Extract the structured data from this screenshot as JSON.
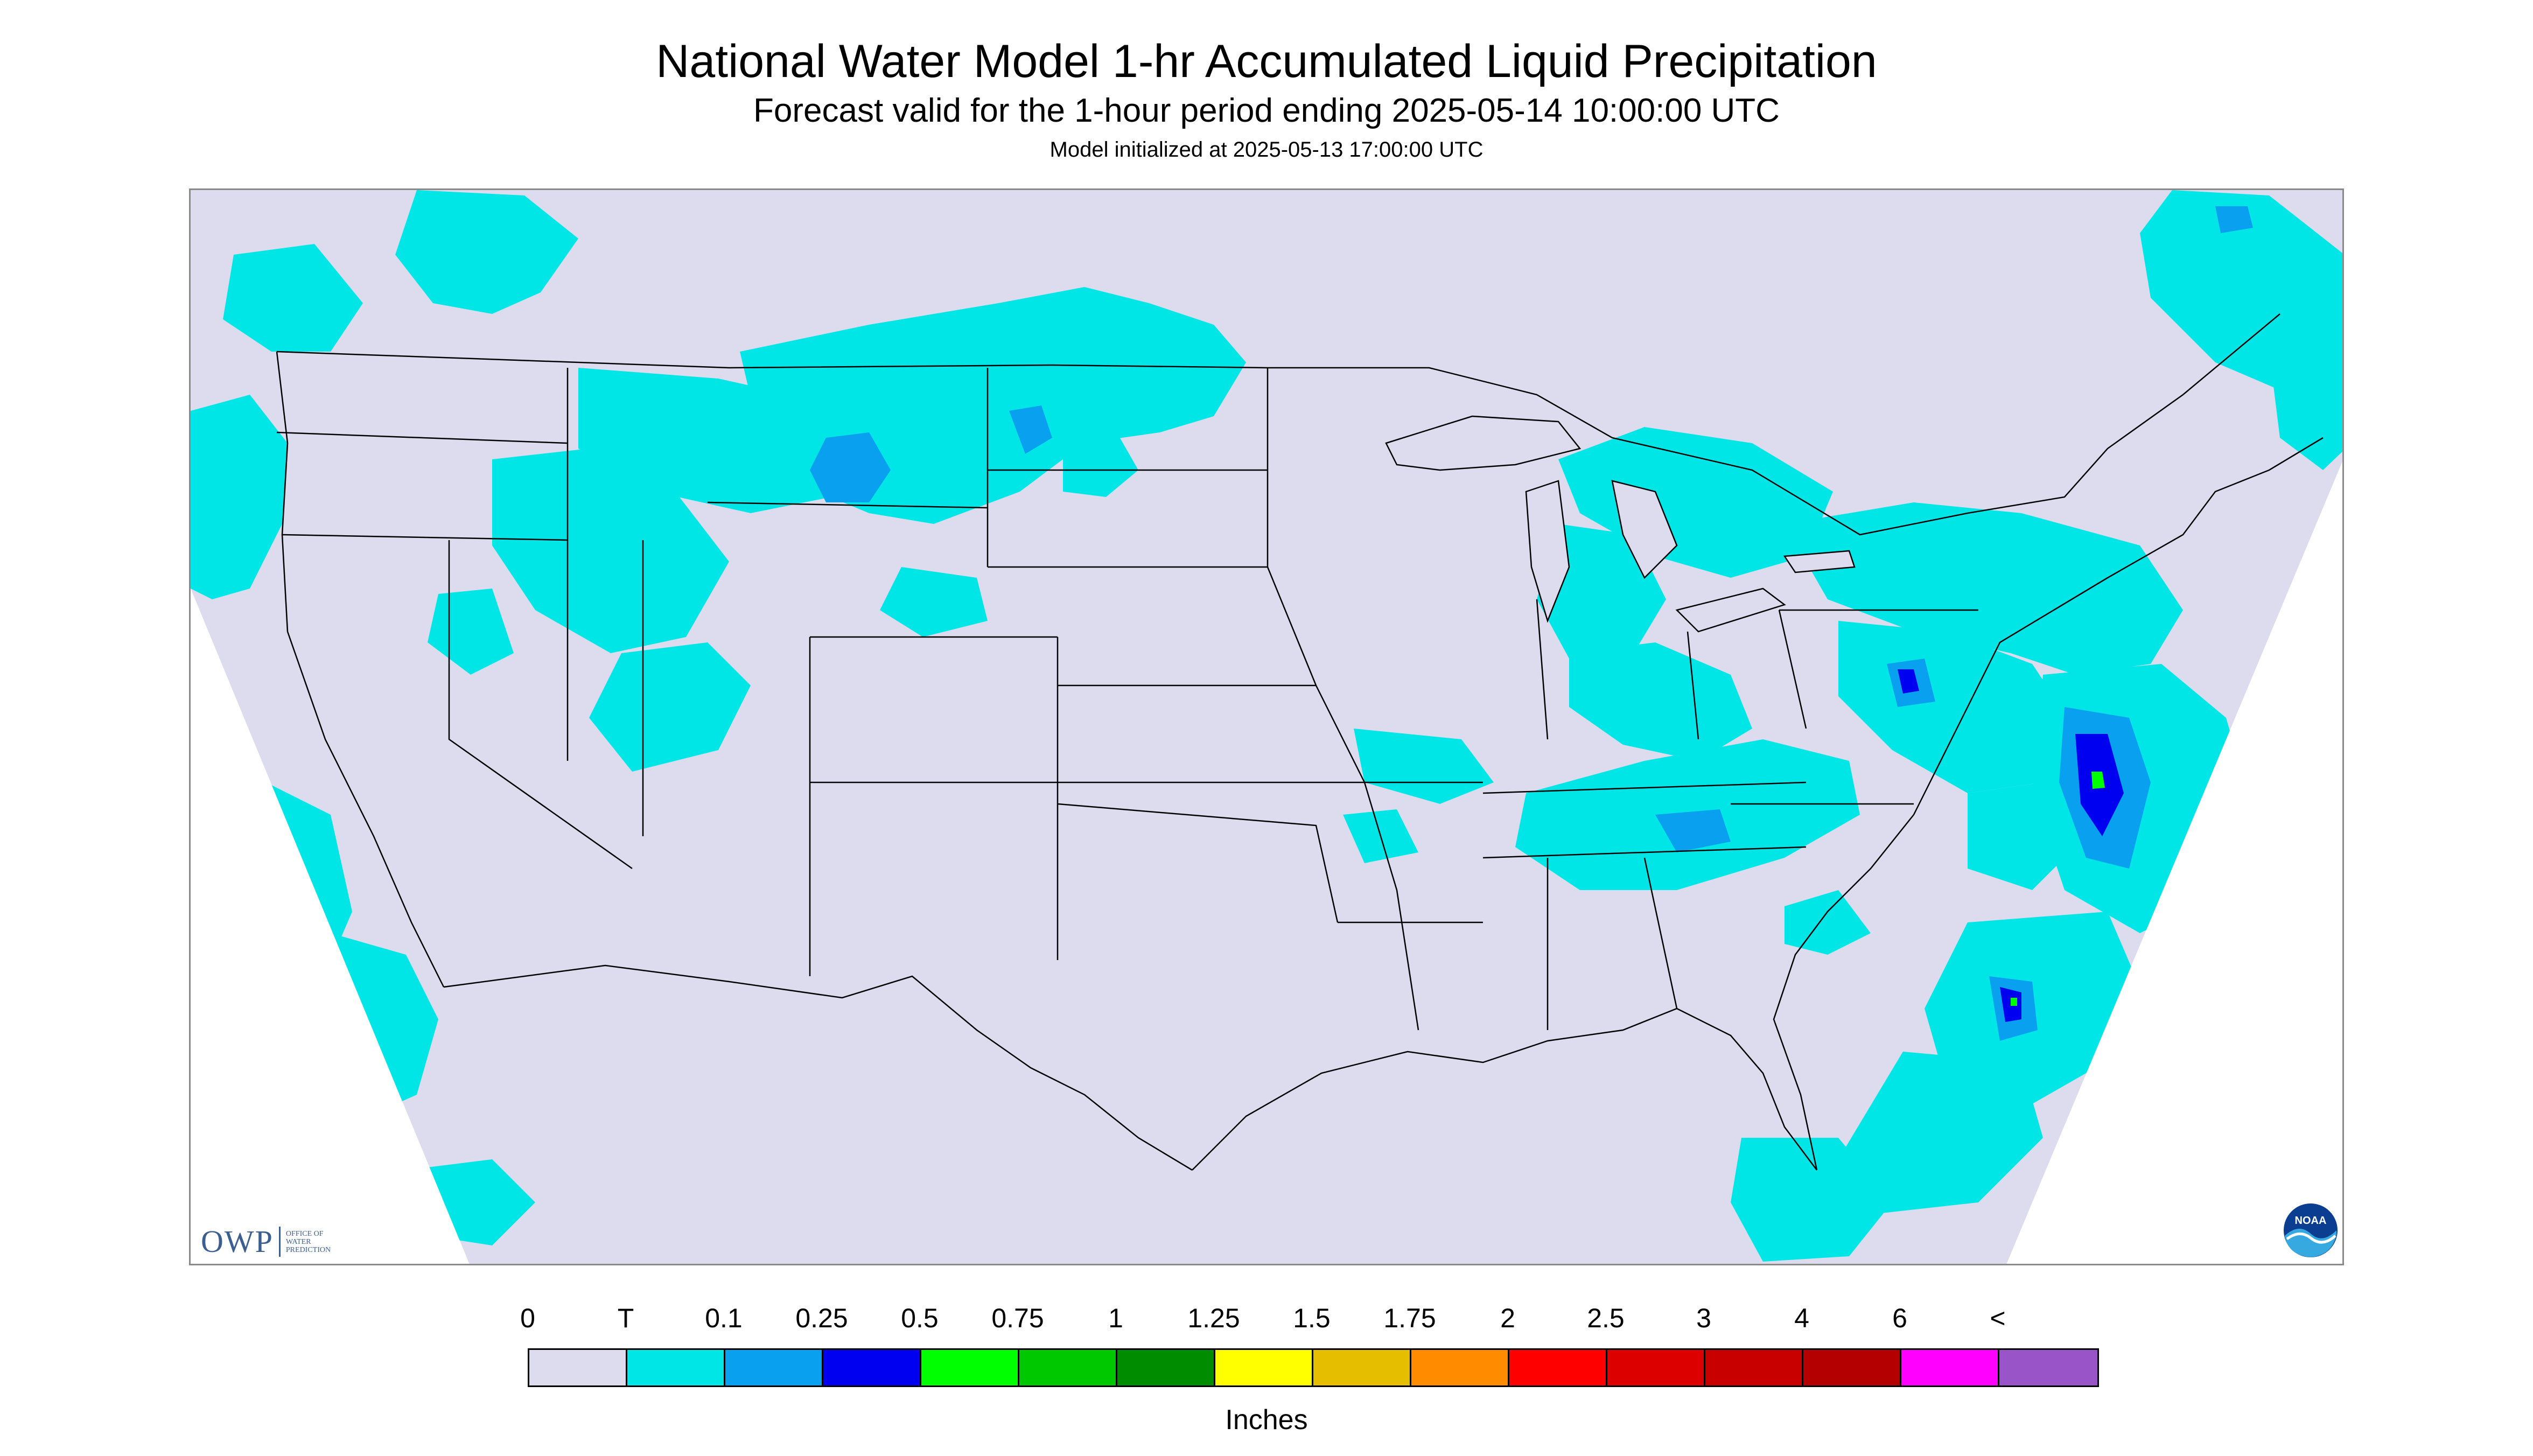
{
  "header": {
    "title": "National Water Model 1-hr Accumulated Liquid Precipitation",
    "subtitle": "Forecast valid for the 1-hour period ending 2025-05-14 10:00:00 UTC",
    "init_line": "Model initialized at 2025-05-13 17:00:00 UTC"
  },
  "logos": {
    "owp_abbrev": "OWP",
    "owp_line1": "Office of",
    "owp_line2": "Water",
    "owp_line3": "Prediction",
    "noaa_text": "NOAA"
  },
  "legend": {
    "labels": [
      "0",
      "T",
      "0.1",
      "0.25",
      "0.5",
      "0.75",
      "1",
      "1.25",
      "1.5",
      "1.75",
      "2",
      "2.5",
      "3",
      "4",
      "6",
      "<"
    ],
    "colors": [
      "#dcdcee",
      "#00e6e6",
      "#0aa0f0",
      "#0000f0",
      "#00ff00",
      "#00c800",
      "#008c00",
      "#ffff00",
      "#e6be00",
      "#ff8c00",
      "#ff0000",
      "#dc0000",
      "#c80000",
      "#b40000",
      "#ff00ff",
      "#9955c8"
    ],
    "units": "Inches"
  },
  "colors": {
    "no_precip": "#dcdcee",
    "trace": "#00e6e6",
    "light": "#0aa0f0",
    "moderate": "#0000f0",
    "heavy": "#00ff00",
    "outside_domain": "#ffffff",
    "boundaries": "#000000"
  }
}
